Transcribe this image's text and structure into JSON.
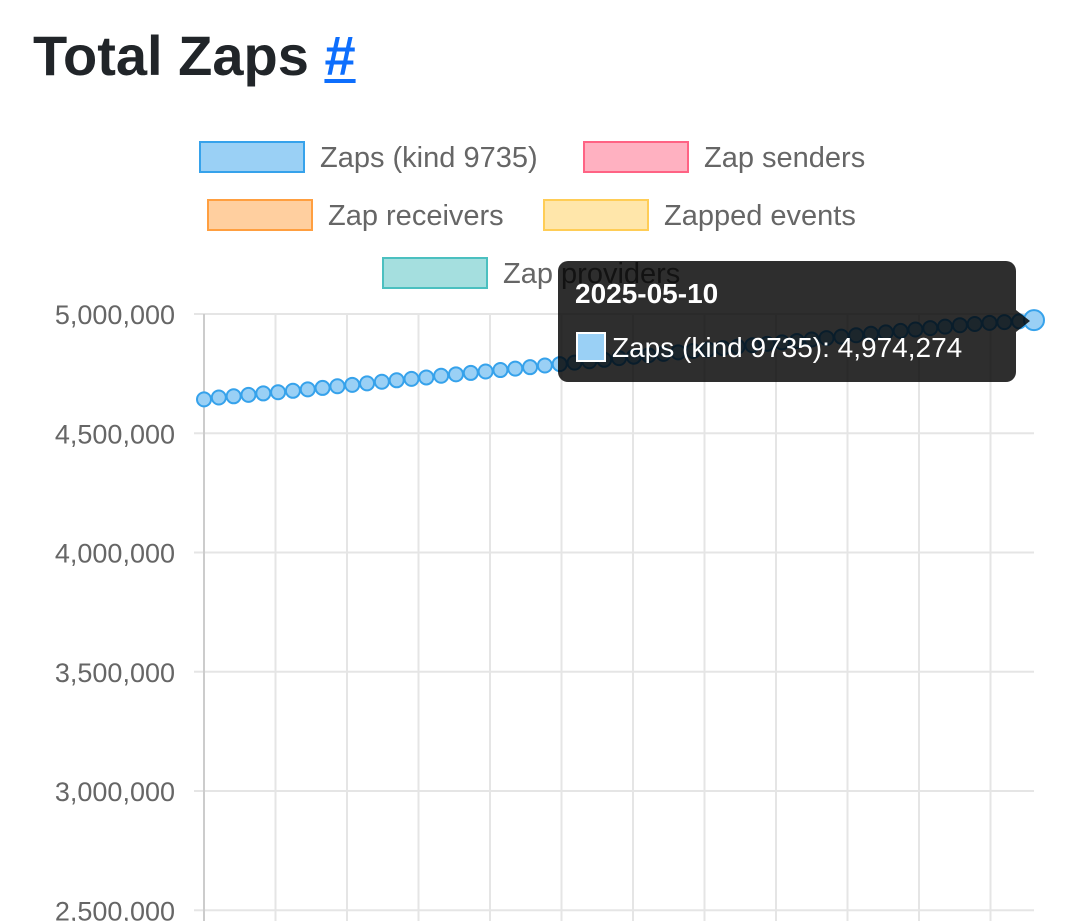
{
  "heading": {
    "title": "Total Zaps",
    "anchor_link": "#"
  },
  "chart_data": {
    "type": "line",
    "title": "",
    "xlabel": "",
    "ylabel": "",
    "ylim": [
      2500000,
      5000000
    ],
    "y_tick_labels": [
      "5,000,000",
      "4,500,000",
      "4,000,000",
      "3,500,000",
      "3,000,000",
      "2,500,000"
    ],
    "y_ticks": [
      5000000,
      4500000,
      4000000,
      3500000,
      3000000,
      2500000
    ],
    "grid": true,
    "legend_placement": "top-center",
    "legend": [
      {
        "name": "Zaps (kind 9735)",
        "fill": "#9ad0f5",
        "border": "#36a2eb"
      },
      {
        "name": "Zap senders",
        "fill": "#ffb1c1",
        "border": "#ff6384"
      },
      {
        "name": "Zap receivers",
        "fill": "#ffcf9f",
        "border": "#ff9f40"
      },
      {
        "name": "Zapped events",
        "fill": "#ffe6aa",
        "border": "#ffcd56"
      },
      {
        "name": "Zap providers",
        "fill": "#a5dfdf",
        "border": "#4bc0c0"
      }
    ],
    "series": [
      {
        "name": "Zaps (kind 9735)",
        "color": "#36a2eb",
        "values": [
          4642000,
          4650000,
          4655000,
          4661000,
          4667000,
          4672000,
          4678000,
          4684000,
          4690000,
          4697000,
          4703000,
          4709000,
          4716000,
          4722000,
          4728000,
          4734000,
          4741000,
          4747000,
          4753000,
          4759000,
          4765000,
          4771000,
          4777000,
          4784000,
          4790000,
          4796000,
          4802000,
          4808000,
          4815000,
          4821000,
          4827000,
          4833000,
          4839000,
          4845000,
          4851000,
          4857000,
          4863000,
          4869000,
          4875000,
          4881000,
          4887000,
          4893000,
          4899000,
          4905000,
          4911000,
          4917000,
          4923000,
          4929000,
          4935000,
          4941000,
          4947000,
          4953000,
          4958000,
          4963000,
          4966000,
          4969000,
          4974274
        ]
      }
    ],
    "tooltip": {
      "title": "2025-05-10",
      "label": "Zaps (kind 9735): 4,974,274",
      "point_index": 56
    }
  }
}
